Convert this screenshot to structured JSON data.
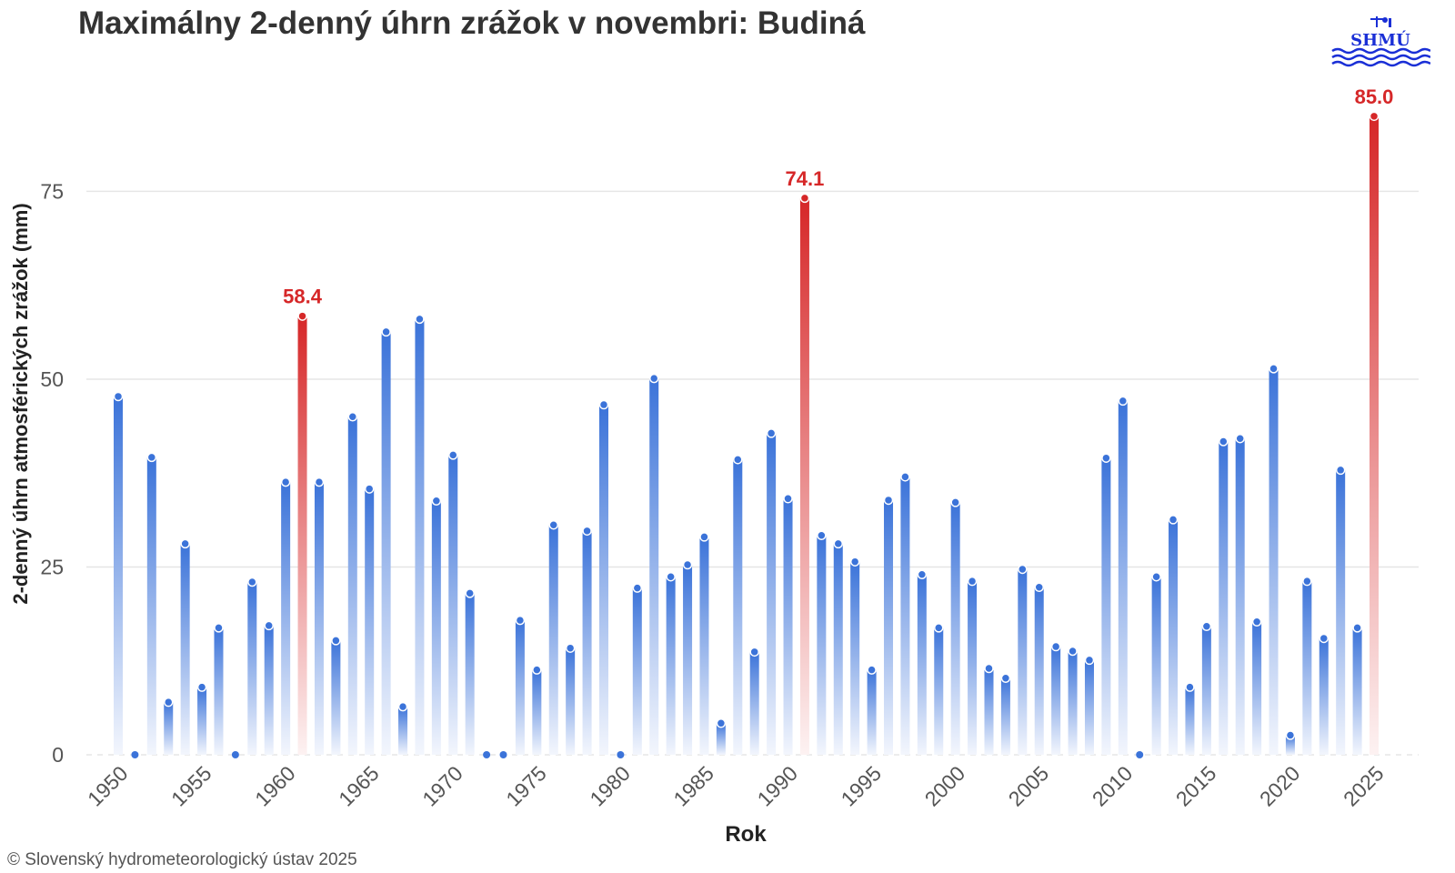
{
  "title": "Maximálny 2-denný úhrn zrážok v novembri: Budiná",
  "footer": "© Slovenský hydrometeorologický ústav 2025",
  "logo_text": "SHMÚ",
  "colors": {
    "bar": "#3b73d9",
    "highlight": "#d62728",
    "grid": "#e6e6e6"
  },
  "chart_data": {
    "type": "bar",
    "xlabel": "Rok",
    "ylabel": "2-denný úhrn atmosférických zrážok (mm)",
    "ylim": [
      0,
      92
    ],
    "yticks": [
      0,
      25,
      50,
      75
    ],
    "xticks": [
      1950,
      1955,
      1960,
      1965,
      1970,
      1975,
      1980,
      1985,
      1990,
      1995,
      2000,
      2005,
      2010,
      2015,
      2020,
      2025
    ],
    "grid": true,
    "x": [
      1950,
      1951,
      1952,
      1953,
      1954,
      1955,
      1956,
      1957,
      1958,
      1959,
      1960,
      1961,
      1962,
      1963,
      1964,
      1965,
      1966,
      1967,
      1968,
      1969,
      1970,
      1971,
      1972,
      1973,
      1974,
      1975,
      1976,
      1977,
      1978,
      1979,
      1980,
      1981,
      1982,
      1983,
      1984,
      1985,
      1986,
      1987,
      1988,
      1989,
      1990,
      1991,
      1992,
      1993,
      1994,
      1995,
      1996,
      1997,
      1998,
      1999,
      2000,
      2001,
      2002,
      2003,
      2004,
      2005,
      2006,
      2007,
      2008,
      2009,
      2010,
      2011,
      2012,
      2013,
      2014,
      2015,
      2016,
      2017,
      2018,
      2019,
      2020,
      2021,
      2022,
      2023,
      2024,
      2025
    ],
    "values": [
      47.7,
      0,
      39.6,
      7,
      28.1,
      9,
      16.9,
      0,
      23,
      17.2,
      36.3,
      58.4,
      36.3,
      15.2,
      45,
      35.4,
      56.3,
      6.4,
      58,
      33.8,
      39.9,
      21.5,
      0,
      0,
      17.9,
      11.3,
      30.6,
      14.2,
      29.8,
      46.6,
      0,
      22.2,
      50.1,
      23.7,
      25.3,
      29,
      4.2,
      39.3,
      13.7,
      42.8,
      34.1,
      74.1,
      29.2,
      28.1,
      25.7,
      11.3,
      33.9,
      37,
      24,
      16.9,
      33.6,
      23.1,
      11.5,
      10.2,
      24.7,
      22.3,
      14.4,
      13.8,
      12.6,
      39.5,
      47.1,
      0,
      23.7,
      31.3,
      9,
      17.1,
      41.7,
      42.1,
      17.7,
      51.4,
      2.6,
      23.1,
      15.5,
      37.9,
      16.9,
      85.0
    ],
    "highlights": [
      {
        "x": 1961,
        "value": 58.4,
        "label": "58.4"
      },
      {
        "x": 1991,
        "value": 74.1,
        "label": "74.1"
      },
      {
        "x": 2025,
        "value": 85.0,
        "label": "85.0"
      }
    ]
  }
}
